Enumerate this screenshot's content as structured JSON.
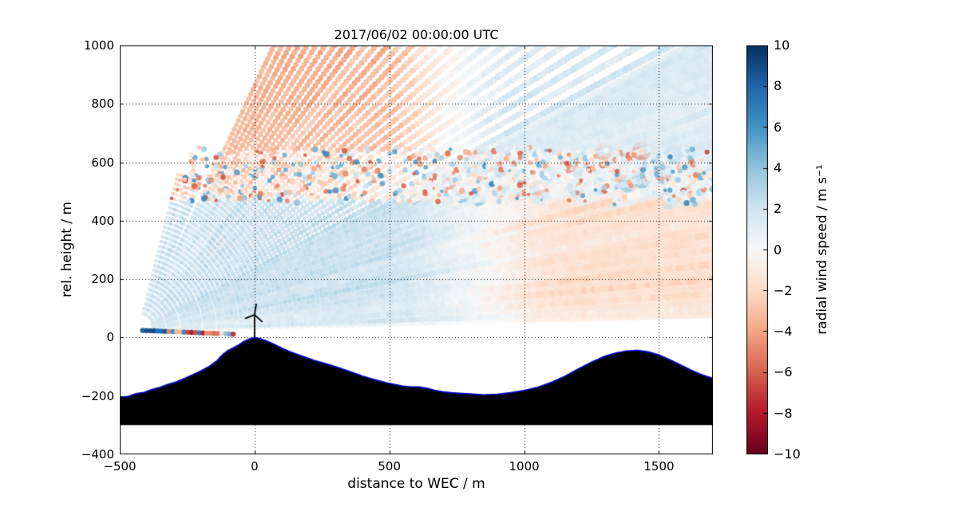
{
  "chart_data": {
    "type": "heatmap",
    "title": "2017/06/02 00:00:00 UTC",
    "xlabel": "distance to WEC / m",
    "ylabel": "rel. height / m",
    "xlim": [
      -500,
      1700
    ],
    "ylim": [
      -400,
      1000
    ],
    "xticks": [
      -500,
      0,
      500,
      1000,
      1500
    ],
    "yticks": [
      -400,
      -200,
      0,
      200,
      400,
      600,
      800,
      1000
    ],
    "grid": true,
    "colorbar": {
      "label": "radial wind speed / m s⁻¹",
      "ticks": [
        10,
        8,
        6,
        4,
        2,
        0,
        -2,
        -4,
        -6,
        -8,
        -10
      ],
      "vmin": -10,
      "vmax": 10,
      "colormap": "RdBu",
      "colormap_stops": [
        "#67001f",
        "#b2182b",
        "#d6604d",
        "#f4a582",
        "#fddbc7",
        "#f7f7f7",
        "#d1e5f0",
        "#92c5de",
        "#4393c3",
        "#2166ac",
        "#053061"
      ]
    },
    "scan": {
      "description": "Doppler lidar RHI scan fan of radial wind speed, beams emanating from lidar left of the wind energy converter",
      "origin": [
        -430,
        25
      ],
      "elevation_deg": [
        2,
        64
      ],
      "elevation_step_deg": 1.35,
      "steep_elevation_deg": [
        64,
        76
      ],
      "steep_max_range_m": 560,
      "range_m": [
        60,
        2450
      ],
      "range_step_m": 17,
      "regions": [
        {
          "name": "upper-left-flow",
          "extent": "height>640m, x<450m",
          "radial_speed": -3.0
        },
        {
          "name": "upper-right-flow",
          "extent": "height>640m, x>950m",
          "radial_speed": 1.4
        },
        {
          "name": "noisy-shear-band",
          "extent": "470m<height<640m",
          "radial_speed": "speckle ±6.5"
        },
        {
          "name": "mid-level-inflow",
          "extent": "height<470m, x<500m",
          "radial_speed": 2.2
        },
        {
          "name": "lower-right-outflow",
          "extent": "height<470m, x>1200m",
          "radial_speed": -1.6
        },
        {
          "name": "ground-clutter-dots",
          "extent": "lowest beam, range<360m",
          "radial_speed": "±8 mixed"
        }
      ]
    },
    "terrain": {
      "fill_color": "#000000",
      "outline_color": "#0000cd",
      "base_m": -300,
      "profile": [
        [
          -500,
          -205
        ],
        [
          -470,
          -202
        ],
        [
          -440,
          -192
        ],
        [
          -410,
          -188
        ],
        [
          -380,
          -178
        ],
        [
          -350,
          -170
        ],
        [
          -320,
          -160
        ],
        [
          -290,
          -152
        ],
        [
          -260,
          -140
        ],
        [
          -230,
          -128
        ],
        [
          -200,
          -115
        ],
        [
          -170,
          -100
        ],
        [
          -140,
          -80
        ],
        [
          -120,
          -60
        ],
        [
          -100,
          -45
        ],
        [
          -80,
          -36
        ],
        [
          -60,
          -26
        ],
        [
          -40,
          -14
        ],
        [
          -20,
          -5
        ],
        [
          0,
          0
        ],
        [
          20,
          -4
        ],
        [
          40,
          -10
        ],
        [
          70,
          -22
        ],
        [
          100,
          -36
        ],
        [
          130,
          -48
        ],
        [
          160,
          -58
        ],
        [
          190,
          -68
        ],
        [
          220,
          -78
        ],
        [
          250,
          -86
        ],
        [
          280,
          -94
        ],
        [
          310,
          -103
        ],
        [
          340,
          -112
        ],
        [
          370,
          -122
        ],
        [
          400,
          -132
        ],
        [
          430,
          -140
        ],
        [
          460,
          -148
        ],
        [
          490,
          -155
        ],
        [
          520,
          -161
        ],
        [
          550,
          -166
        ],
        [
          580,
          -169
        ],
        [
          610,
          -169
        ],
        [
          640,
          -174
        ],
        [
          670,
          -181
        ],
        [
          700,
          -186
        ],
        [
          730,
          -189
        ],
        [
          760,
          -191
        ],
        [
          800,
          -193
        ],
        [
          850,
          -196
        ],
        [
          900,
          -194
        ],
        [
          950,
          -189
        ],
        [
          1000,
          -181
        ],
        [
          1050,
          -170
        ],
        [
          1100,
          -154
        ],
        [
          1150,
          -133
        ],
        [
          1200,
          -108
        ],
        [
          1250,
          -84
        ],
        [
          1300,
          -64
        ],
        [
          1340,
          -53
        ],
        [
          1380,
          -46
        ],
        [
          1420,
          -44
        ],
        [
          1460,
          -49
        ],
        [
          1500,
          -60
        ],
        [
          1540,
          -76
        ],
        [
          1580,
          -94
        ],
        [
          1620,
          -112
        ],
        [
          1660,
          -128
        ],
        [
          1700,
          -140
        ]
      ]
    },
    "turbine": {
      "x": 0,
      "base_y": 0,
      "hub_height_m": 78,
      "blade_length_m": 38
    }
  },
  "axes": {
    "xtick_labels": [
      "−500",
      "0",
      "500",
      "1000",
      "1500"
    ],
    "ytick_labels": [
      "−400",
      "−200",
      "0",
      "200",
      "400",
      "600",
      "800",
      "1000"
    ],
    "colorbar_tick_labels": [
      "10",
      "8",
      "6",
      "4",
      "2",
      "0",
      "−2",
      "−4",
      "−6",
      "−8",
      "−10"
    ]
  }
}
